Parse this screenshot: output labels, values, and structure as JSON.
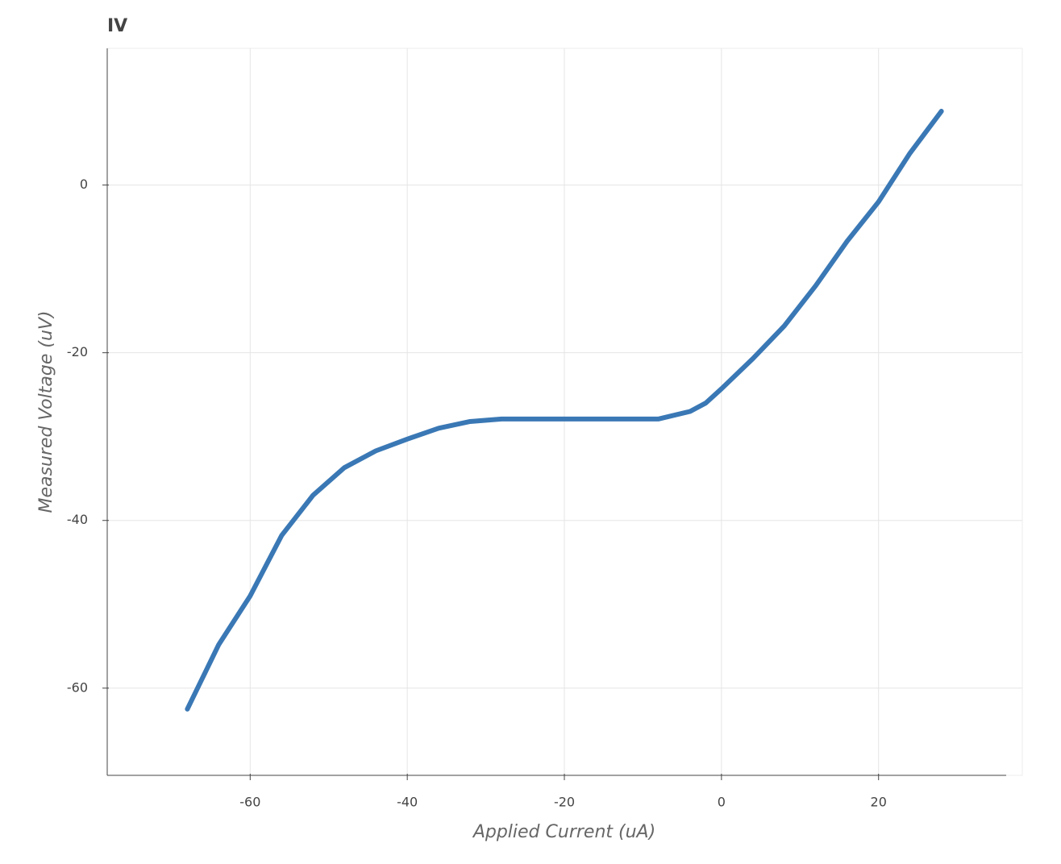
{
  "chart_data": {
    "type": "line",
    "title": "IV",
    "x_label": "Applied Current (uA)",
    "y_label": "Measured Voltage (uV)",
    "x": [
      -68,
      -64,
      -60,
      -56,
      -52,
      -48,
      -44,
      -40,
      -36,
      -32,
      -28,
      -24,
      -20,
      -16,
      -12,
      -8,
      -4,
      -2,
      0,
      4,
      8,
      12,
      16,
      20,
      24,
      28
    ],
    "series": [
      {
        "color": "#3a78b5",
        "values": [
          -62.5,
          -54.8,
          -49,
          -41.8,
          -37,
          -33.7,
          -31.7,
          -30.3,
          -29,
          -28.2,
          -27.9,
          -27.9,
          -27.9,
          -27.9,
          -27.9,
          -27.9,
          -27,
          -26,
          -24.3,
          -20.7,
          -16.8,
          -12,
          -6.7,
          -2,
          3.8,
          8.8
        ]
      }
    ],
    "xlim": [
      -78.2,
      38.3
    ],
    "ylim": [
      -70.4,
      16.3
    ],
    "xticks": [
      -60,
      -40,
      -20,
      0,
      20
    ],
    "yticks": [
      -60,
      -40,
      -20,
      0
    ],
    "grid": true
  }
}
